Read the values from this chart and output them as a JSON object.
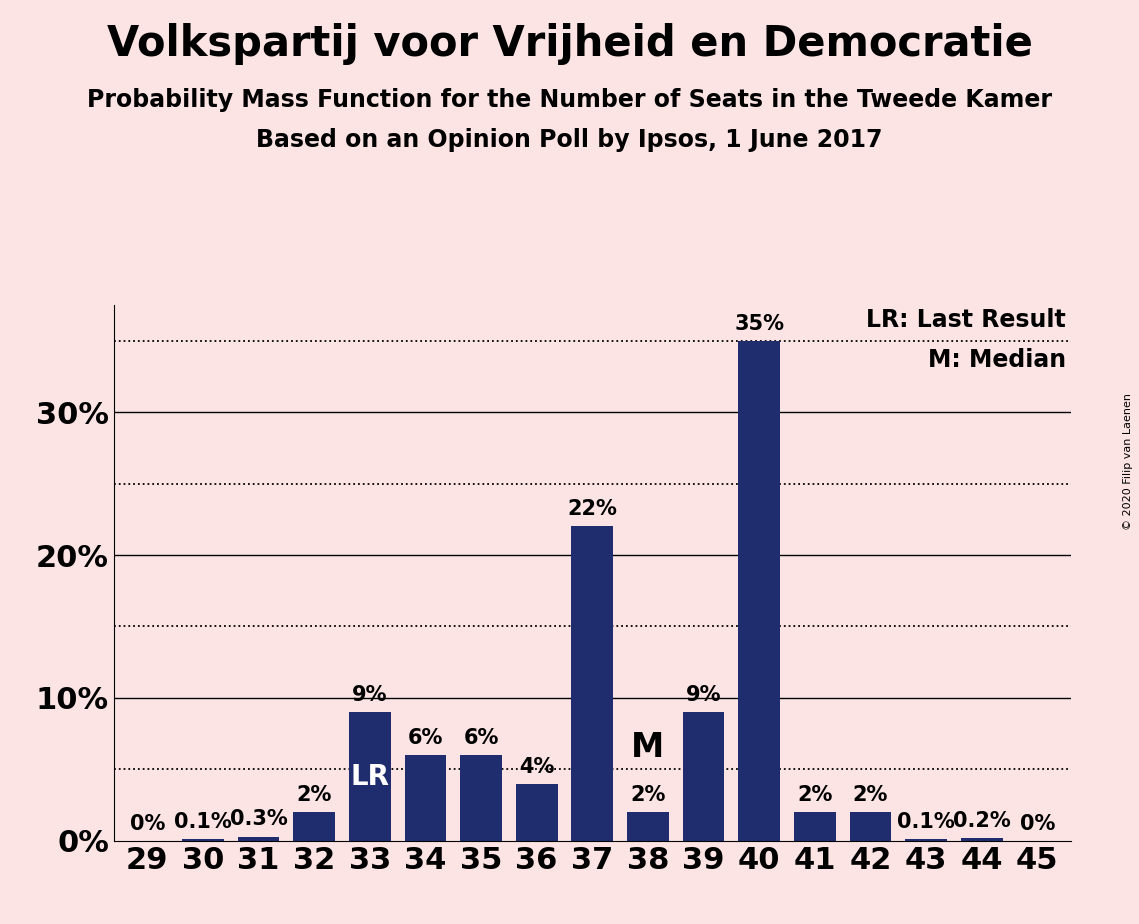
{
  "title": "Volkspartij voor Vrijheid en Democratie",
  "subtitle1": "Probability Mass Function for the Number of Seats in the Tweede Kamer",
  "subtitle2": "Based on an Opinion Poll by Ipsos, 1 June 2017",
  "copyright": "© 2020 Filip van Laenen",
  "categories": [
    29,
    30,
    31,
    32,
    33,
    34,
    35,
    36,
    37,
    38,
    39,
    40,
    41,
    42,
    43,
    44,
    45
  ],
  "values": [
    0.0,
    0.1,
    0.3,
    2.0,
    9.0,
    6.0,
    6.0,
    4.0,
    22.0,
    2.0,
    9.0,
    35.0,
    2.0,
    2.0,
    0.1,
    0.2,
    0.0
  ],
  "labels": [
    "0%",
    "0.1%",
    "0.3%",
    "2%",
    "9%",
    "6%",
    "6%",
    "4%",
    "22%",
    "2%",
    "9%",
    "35%",
    "2%",
    "2%",
    "0.1%",
    "0.2%",
    "0%"
  ],
  "bar_color": "#1f2d6e",
  "background_color": "#fce4e4",
  "lr_seat": 33,
  "median_seat": 38,
  "lr_label": "LR",
  "median_label": "M",
  "lr_legend": "LR: Last Result",
  "median_legend": "M: Median",
  "ylim": [
    0,
    37.5
  ],
  "yticks": [
    0,
    10,
    20,
    30
  ],
  "ytick_labels": [
    "0%",
    "10%",
    "20%",
    "30%"
  ],
  "dotted_lines": [
    5,
    15,
    25,
    35
  ],
  "solid_lines": [
    10,
    20,
    30
  ],
  "title_fontsize": 30,
  "subtitle_fontsize": 17,
  "tick_fontsize": 22,
  "bar_label_fontsize": 15,
  "overlay_label_fontsize": 20,
  "legend_fontsize": 17
}
